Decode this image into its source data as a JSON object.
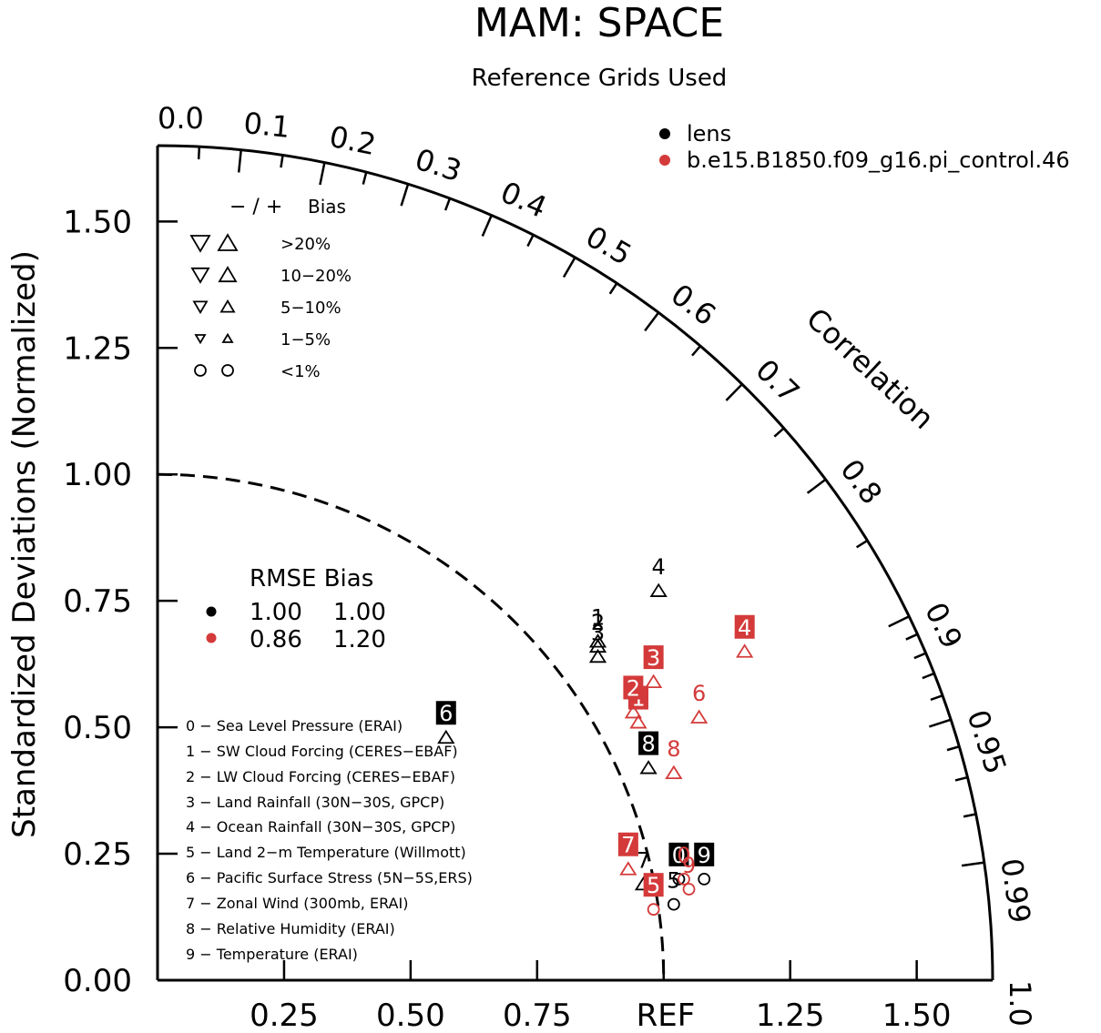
{
  "chart_data": {
    "type": "scatter",
    "diagram": "taylor",
    "title": "MAM: SPACE",
    "subtitle": "Reference Grids Used",
    "ylabel": "Standardized Deviations (Normalized)",
    "arc_label": "Correlation",
    "ref_label": "REF",
    "x_ticks": [
      "0.25",
      "0.50",
      "0.75",
      "1.25",
      "1.50"
    ],
    "y_ticks": [
      "0.00",
      "0.25",
      "0.50",
      "0.75",
      "1.00",
      "1.25",
      "1.50"
    ],
    "corr_ticks": [
      "0.0",
      "0.1",
      "0.2",
      "0.3",
      "0.4",
      "0.5",
      "0.6",
      "0.7",
      "0.8",
      "0.9",
      "0.95",
      "0.99",
      "1.0"
    ],
    "xlim": [
      0,
      1.65
    ],
    "ylim": [
      0,
      1.65
    ],
    "ref_std": 1.0,
    "colors": {
      "lens": "#000000",
      "pi": "#d43a3a"
    },
    "legend": {
      "series": [
        {
          "name": "lens",
          "color": "#000000"
        },
        {
          "name": "b.e15.B1850.f09_g16.pi_control.46",
          "color": "#d43a3a"
        }
      ]
    },
    "bias_legend": {
      "header_signs": "− / +",
      "header_label": "Bias",
      "rows": [
        "&gt;20%",
        "10−20%",
        "5−10%",
        "1−5%",
        "&lt;1%"
      ]
    },
    "rmse_legend": {
      "header": "RMSE Bias",
      "rows": [
        {
          "rmse": "1.00",
          "bias": "1.00",
          "color": "#000000"
        },
        {
          "rmse": "0.86",
          "bias": "1.20",
          "color": "#d43a3a"
        }
      ]
    },
    "variables": [
      "0 − Sea Level Pressure (ERAI)",
      "1 − SW Cloud Forcing (CERES−EBAF)",
      "2 − LW Cloud Forcing (CERES−EBAF)",
      "3 − Land Rainfall (30N−30S, GPCP)",
      "4 − Ocean Rainfall (30N−30S, GPCP)",
      "5 − Land 2−m Temperature (Willmott)",
      "6 − Pacific Surface Stress (5N−5S,ERS)",
      "7 − Zonal Wind (300mb, ERAI)",
      "8 − Relative Humidity (ERAI)",
      "9 − Temperature (ERAI)"
    ],
    "series": [
      {
        "name": "lens",
        "color": "#000000",
        "points": [
          {
            "id": "0",
            "x": 1.03,
            "y": 0.2,
            "marker": "circle",
            "dir": "up",
            "box": true
          },
          {
            "id": "1",
            "x": 0.87,
            "y": 0.67,
            "marker": "triangle",
            "dir": "up",
            "box": false
          },
          {
            "id": "2",
            "x": 0.87,
            "y": 0.66,
            "marker": "triangle",
            "dir": "up",
            "box": false
          },
          {
            "id": "3",
            "x": 0.87,
            "y": 0.64,
            "marker": "triangle",
            "dir": "up",
            "box": false
          },
          {
            "id": "4",
            "x": 0.99,
            "y": 0.77,
            "marker": "triangle",
            "dir": "up",
            "box": false
          },
          {
            "id": "5",
            "x": 1.02,
            "y": 0.15,
            "marker": "circle",
            "dir": "up",
            "box": false
          },
          {
            "id": "6",
            "x": 0.57,
            "y": 0.48,
            "marker": "triangle",
            "dir": "up",
            "box": true
          },
          {
            "id": "7",
            "x": 0.96,
            "y": 0.19,
            "marker": "triangle",
            "dir": "up",
            "box": false
          },
          {
            "id": "8",
            "x": 0.97,
            "y": 0.42,
            "marker": "triangle",
            "dir": "up",
            "box": true
          },
          {
            "id": "9",
            "x": 1.08,
            "y": 0.2,
            "marker": "circle",
            "dir": "up",
            "box": true
          }
        ]
      },
      {
        "name": "b.e15.B1850.f09_g16.pi_control.46",
        "color": "#d43a3a",
        "points": [
          {
            "id": "0",
            "x": 1.04,
            "y": 0.2,
            "marker": "circle",
            "dir": "up",
            "box": false
          },
          {
            "id": "1",
            "x": 0.95,
            "y": 0.51,
            "marker": "triangle",
            "dir": "up",
            "box": true
          },
          {
            "id": "2",
            "x": 0.94,
            "y": 0.53,
            "marker": "triangle",
            "dir": "up",
            "box": true
          },
          {
            "id": "3",
            "x": 0.98,
            "y": 0.59,
            "marker": "triangle",
            "dir": "up",
            "box": true
          },
          {
            "id": "4",
            "x": 1.16,
            "y": 0.65,
            "marker": "triangle",
            "dir": "up",
            "box": true
          },
          {
            "id": "5",
            "x": 0.98,
            "y": 0.14,
            "marker": "circle",
            "dir": "up",
            "box": true
          },
          {
            "id": "6",
            "x": 1.07,
            "y": 0.52,
            "marker": "triangle",
            "dir": "up",
            "box": false
          },
          {
            "id": "7",
            "x": 0.93,
            "y": 0.22,
            "marker": "triangle",
            "dir": "up",
            "box": true
          },
          {
            "id": "8",
            "x": 1.02,
            "y": 0.41,
            "marker": "triangle",
            "dir": "up",
            "box": false
          },
          {
            "id": "9",
            "x": 1.05,
            "y": 0.18,
            "marker": "circle",
            "dir": "up",
            "box": false
          }
        ]
      }
    ]
  }
}
